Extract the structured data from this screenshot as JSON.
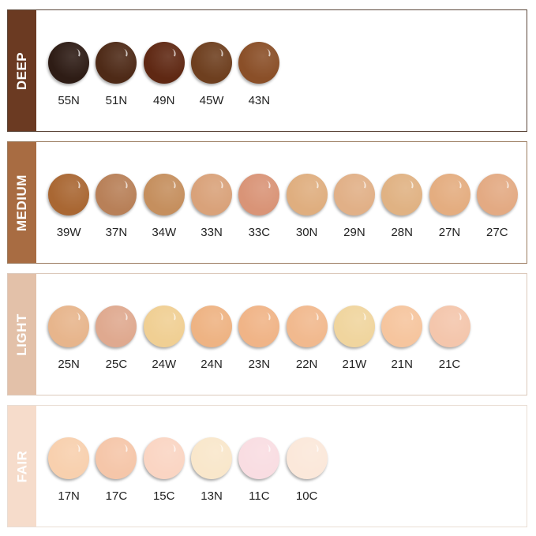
{
  "groups": [
    {
      "name": "DEEP",
      "tab_color": "#6b3a22",
      "border_color": "#5a4538",
      "shades": [
        {
          "code": "55N",
          "color": "#2e1c15"
        },
        {
          "code": "51N",
          "color": "#4e2a17"
        },
        {
          "code": "49N",
          "color": "#5f2813"
        },
        {
          "code": "45W",
          "color": "#6e3f1f"
        },
        {
          "code": "43N",
          "color": "#8a4f28"
        }
      ]
    },
    {
      "name": "MEDIUM",
      "tab_color": "#a86c42",
      "border_color": "#9a7a5e",
      "shades": [
        {
          "code": "39W",
          "color": "#a96733"
        },
        {
          "code": "37N",
          "color": "#b88058"
        },
        {
          "code": "34W",
          "color": "#c58f5e"
        },
        {
          "code": "33N",
          "color": "#d9a27a"
        },
        {
          "code": "33C",
          "color": "#d99477"
        },
        {
          "code": "30N",
          "color": "#dfae7f"
        },
        {
          "code": "29N",
          "color": "#e1b087"
        },
        {
          "code": "28N",
          "color": "#e0b283"
        },
        {
          "code": "27N",
          "color": "#e4ad80"
        },
        {
          "code": "27C",
          "color": "#e3aa83"
        }
      ]
    },
    {
      "name": "LIGHT",
      "tab_color": "#e3c1a9",
      "border_color": "#dcc9bb",
      "shades": [
        {
          "code": "25N",
          "color": "#e7b58c"
        },
        {
          "code": "25C",
          "color": "#dfa98f"
        },
        {
          "code": "24W",
          "color": "#f0cf93"
        },
        {
          "code": "24N",
          "color": "#eeb383"
        },
        {
          "code": "23N",
          "color": "#f0b487"
        },
        {
          "code": "22N",
          "color": "#f1b98e"
        },
        {
          "code": "21W",
          "color": "#f0d59e"
        },
        {
          "code": "21N",
          "color": "#f6c59e"
        },
        {
          "code": "21C",
          "color": "#f4c6ac"
        }
      ]
    },
    {
      "name": "FAIR",
      "tab_color": "#f6dccb",
      "border_color": "#e9ddd4",
      "shades": [
        {
          "code": "17N",
          "color": "#f8d0ae"
        },
        {
          "code": "17C",
          "color": "#f5c6a9"
        },
        {
          "code": "15C",
          "color": "#fad5c3"
        },
        {
          "code": "13N",
          "color": "#f9e7cb"
        },
        {
          "code": "11C",
          "color": "#f9dde2"
        },
        {
          "code": "10C",
          "color": "#fbe8da"
        }
      ]
    }
  ]
}
